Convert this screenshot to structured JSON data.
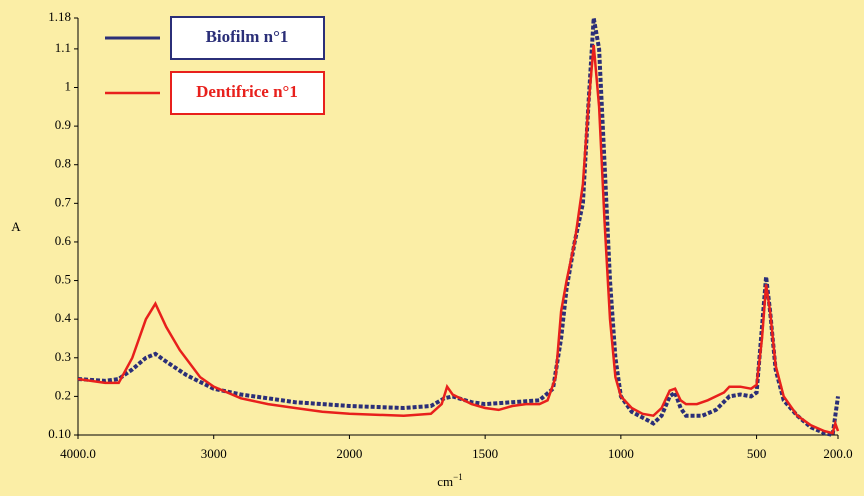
{
  "chart_data": {
    "type": "line",
    "y_label": "A",
    "x_label": "cm",
    "x_label_sup": "−1",
    "xlim": [
      4000,
      200
    ],
    "x_scale_break": 2000,
    "xticks": [
      {
        "value": 4000,
        "label": "4000.0"
      },
      3000,
      2000,
      1500,
      1000,
      500,
      {
        "value": 200,
        "label": "200.0"
      }
    ],
    "ylim": [
      0.1,
      1.18
    ],
    "yticks": [
      {
        "value": 0.1,
        "label": "0.10"
      },
      0.2,
      0.3,
      0.4,
      0.5,
      0.6,
      0.7,
      0.8,
      0.9,
      1.0,
      1.1,
      1.18
    ],
    "legend": "top-left",
    "series": [
      {
        "name": "Biofilm n°1",
        "color": "#2b2f78",
        "dashed": true,
        "x": [
          4000,
          3800,
          3700,
          3600,
          3500,
          3430,
          3350,
          3200,
          3000,
          2800,
          2600,
          2400,
          2200,
          2000,
          1800,
          1700,
          1650,
          1620,
          1550,
          1500,
          1400,
          1300,
          1250,
          1220,
          1200,
          1170,
          1140,
          1120,
          1100,
          1080,
          1060,
          1040,
          1020,
          1000,
          960,
          920,
          880,
          850,
          820,
          800,
          780,
          760,
          700,
          650,
          600,
          560,
          520,
          500,
          480,
          465,
          450,
          430,
          400,
          350,
          300,
          250,
          220,
          210,
          200
        ],
        "values": [
          0.245,
          0.24,
          0.245,
          0.27,
          0.3,
          0.31,
          0.29,
          0.255,
          0.22,
          0.205,
          0.195,
          0.185,
          0.18,
          0.175,
          0.17,
          0.175,
          0.195,
          0.2,
          0.185,
          0.18,
          0.185,
          0.19,
          0.22,
          0.35,
          0.48,
          0.6,
          0.7,
          0.95,
          1.18,
          1.1,
          0.8,
          0.5,
          0.3,
          0.2,
          0.16,
          0.145,
          0.13,
          0.15,
          0.2,
          0.21,
          0.17,
          0.15,
          0.15,
          0.165,
          0.2,
          0.205,
          0.2,
          0.21,
          0.38,
          0.51,
          0.42,
          0.27,
          0.19,
          0.15,
          0.12,
          0.105,
          0.1,
          0.15,
          0.2
        ]
      },
      {
        "name": "Dentifrice n°1",
        "color": "#e8201c",
        "dashed": false,
        "x": [
          4000,
          3800,
          3700,
          3600,
          3500,
          3430,
          3350,
          3250,
          3100,
          3000,
          2900,
          2800,
          2600,
          2400,
          2200,
          2000,
          1800,
          1700,
          1660,
          1640,
          1620,
          1550,
          1500,
          1450,
          1400,
          1350,
          1300,
          1270,
          1240,
          1220,
          1200,
          1170,
          1140,
          1120,
          1100,
          1080,
          1060,
          1040,
          1020,
          1000,
          960,
          920,
          880,
          850,
          820,
          800,
          780,
          760,
          720,
          680,
          620,
          600,
          560,
          520,
          500,
          480,
          465,
          450,
          430,
          400,
          350,
          300,
          250,
          220,
          210,
          200
        ],
        "values": [
          0.245,
          0.235,
          0.235,
          0.3,
          0.4,
          0.44,
          0.38,
          0.32,
          0.25,
          0.225,
          0.21,
          0.195,
          0.18,
          0.17,
          0.16,
          0.155,
          0.15,
          0.155,
          0.18,
          0.225,
          0.205,
          0.18,
          0.17,
          0.165,
          0.175,
          0.18,
          0.18,
          0.19,
          0.25,
          0.42,
          0.5,
          0.6,
          0.75,
          0.95,
          1.11,
          0.95,
          0.65,
          0.4,
          0.25,
          0.2,
          0.17,
          0.155,
          0.15,
          0.17,
          0.215,
          0.22,
          0.19,
          0.18,
          0.18,
          0.19,
          0.21,
          0.225,
          0.225,
          0.22,
          0.23,
          0.35,
          0.49,
          0.42,
          0.28,
          0.2,
          0.15,
          0.125,
          0.11,
          0.105,
          0.13,
          0.11
        ]
      }
    ]
  }
}
